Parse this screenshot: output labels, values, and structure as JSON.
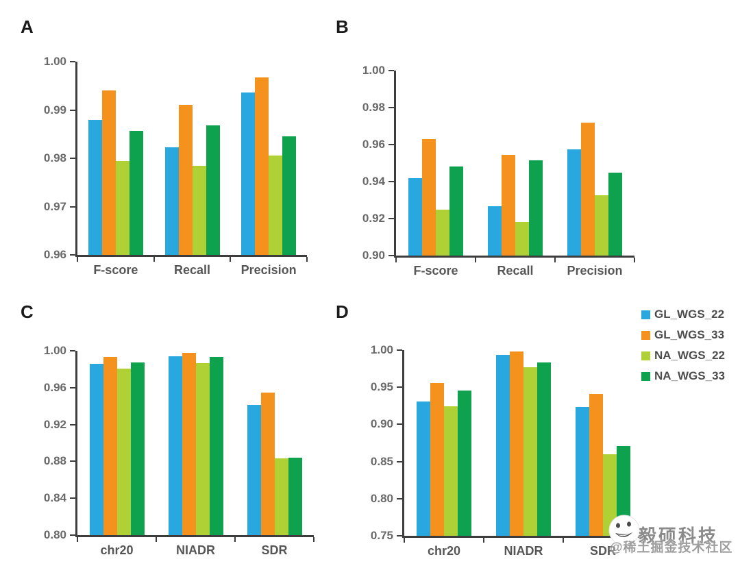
{
  "page": {
    "background": "#ffffff"
  },
  "colors": {
    "series_blue": "#29A8E0",
    "series_orange": "#F5921E",
    "series_yellowgreen": "#AFD136",
    "series_green": "#0FA24E",
    "axis": "#3d3d3d",
    "tick_text": "#696969",
    "category_text": "#565656",
    "legend_text": "#4d4d4d"
  },
  "legend": {
    "position": "right-of-panel-D-top",
    "items": [
      {
        "label": "GL_WGS_22",
        "color": "#29A8E0"
      },
      {
        "label": "GL_WGS_33",
        "color": "#F5921E"
      },
      {
        "label": "NA_WGS_22",
        "color": "#AFD136"
      },
      {
        "label": "NA_WGS_33",
        "color": "#0FA24E"
      }
    ]
  },
  "watermark": {
    "sticker_icon": "wechat-emoji-sticker",
    "line1": "毅硕科技",
    "line2": "@稀土掘金技术社区"
  },
  "chart_data": [
    {
      "panel": "A",
      "type": "bar",
      "title": "",
      "xlabel": "",
      "ylabel": "",
      "grid": false,
      "categories": [
        "F-score",
        "Recall",
        "Precision"
      ],
      "series": [
        {
          "name": "GL_WGS_22",
          "values": [
            0.988,
            0.9823,
            0.9936
          ]
        },
        {
          "name": "GL_WGS_33",
          "values": [
            0.994,
            0.9911,
            0.9967
          ]
        },
        {
          "name": "NA_WGS_22",
          "values": [
            0.9795,
            0.9785,
            0.9805
          ]
        },
        {
          "name": "NA_WGS_33",
          "values": [
            0.9857,
            0.9868,
            0.9845
          ]
        }
      ],
      "ylim": [
        0.96,
        1.0
      ],
      "yticks": [
        "1.00",
        "0.99",
        "0.98",
        "0.97",
        "0.96"
      ]
    },
    {
      "panel": "B",
      "type": "bar",
      "title": "",
      "xlabel": "",
      "ylabel": "",
      "grid": false,
      "categories": [
        "F-score",
        "Recall",
        "Precision"
      ],
      "series": [
        {
          "name": "GL_WGS_22",
          "values": [
            0.942,
            0.9265,
            0.9575
          ]
        },
        {
          "name": "GL_WGS_33",
          "values": [
            0.963,
            0.9545,
            0.972
          ]
        },
        {
          "name": "NA_WGS_22",
          "values": [
            0.925,
            0.918,
            0.9325
          ]
        },
        {
          "name": "NA_WGS_33",
          "values": [
            0.948,
            0.9515,
            0.945
          ]
        }
      ],
      "ylim": [
        0.9,
        1.0
      ],
      "yticks": [
        "1.00",
        "0.98",
        "0.96",
        "0.94",
        "0.92",
        "0.90"
      ]
    },
    {
      "panel": "C",
      "type": "bar",
      "title": "",
      "xlabel": "",
      "ylabel": "",
      "grid": false,
      "categories": [
        "chr20",
        "NIADR",
        "SDR"
      ],
      "series": [
        {
          "name": "GL_WGS_22",
          "values": [
            0.986,
            0.994,
            0.941
          ]
        },
        {
          "name": "GL_WGS_33",
          "values": [
            0.993,
            0.998,
            0.9545
          ]
        },
        {
          "name": "NA_WGS_22",
          "values": [
            0.981,
            0.987,
            0.883
          ]
        },
        {
          "name": "NA_WGS_33",
          "values": [
            0.9875,
            0.993,
            0.884
          ]
        }
      ],
      "ylim": [
        0.8,
        1.0
      ],
      "yticks": [
        "1.00",
        "0.96",
        "0.92",
        "0.88",
        "0.84",
        "0.80"
      ]
    },
    {
      "panel": "D",
      "type": "bar",
      "title": "",
      "xlabel": "",
      "ylabel": "",
      "grid": false,
      "categories": [
        "chr20",
        "NIADR",
        "SDR"
      ],
      "series": [
        {
          "name": "GL_WGS_22",
          "values": [
            0.931,
            0.994,
            0.923
          ]
        },
        {
          "name": "GL_WGS_33",
          "values": [
            0.956,
            0.998,
            0.941
          ]
        },
        {
          "name": "NA_WGS_22",
          "values": [
            0.924,
            0.977,
            0.86
          ]
        },
        {
          "name": "NA_WGS_33",
          "values": [
            0.946,
            0.983,
            0.871
          ]
        }
      ],
      "ylim": [
        0.75,
        1.0
      ],
      "yticks": [
        "1.00",
        "0.95",
        "0.90",
        "0.85",
        "0.80",
        "0.75"
      ]
    }
  ]
}
